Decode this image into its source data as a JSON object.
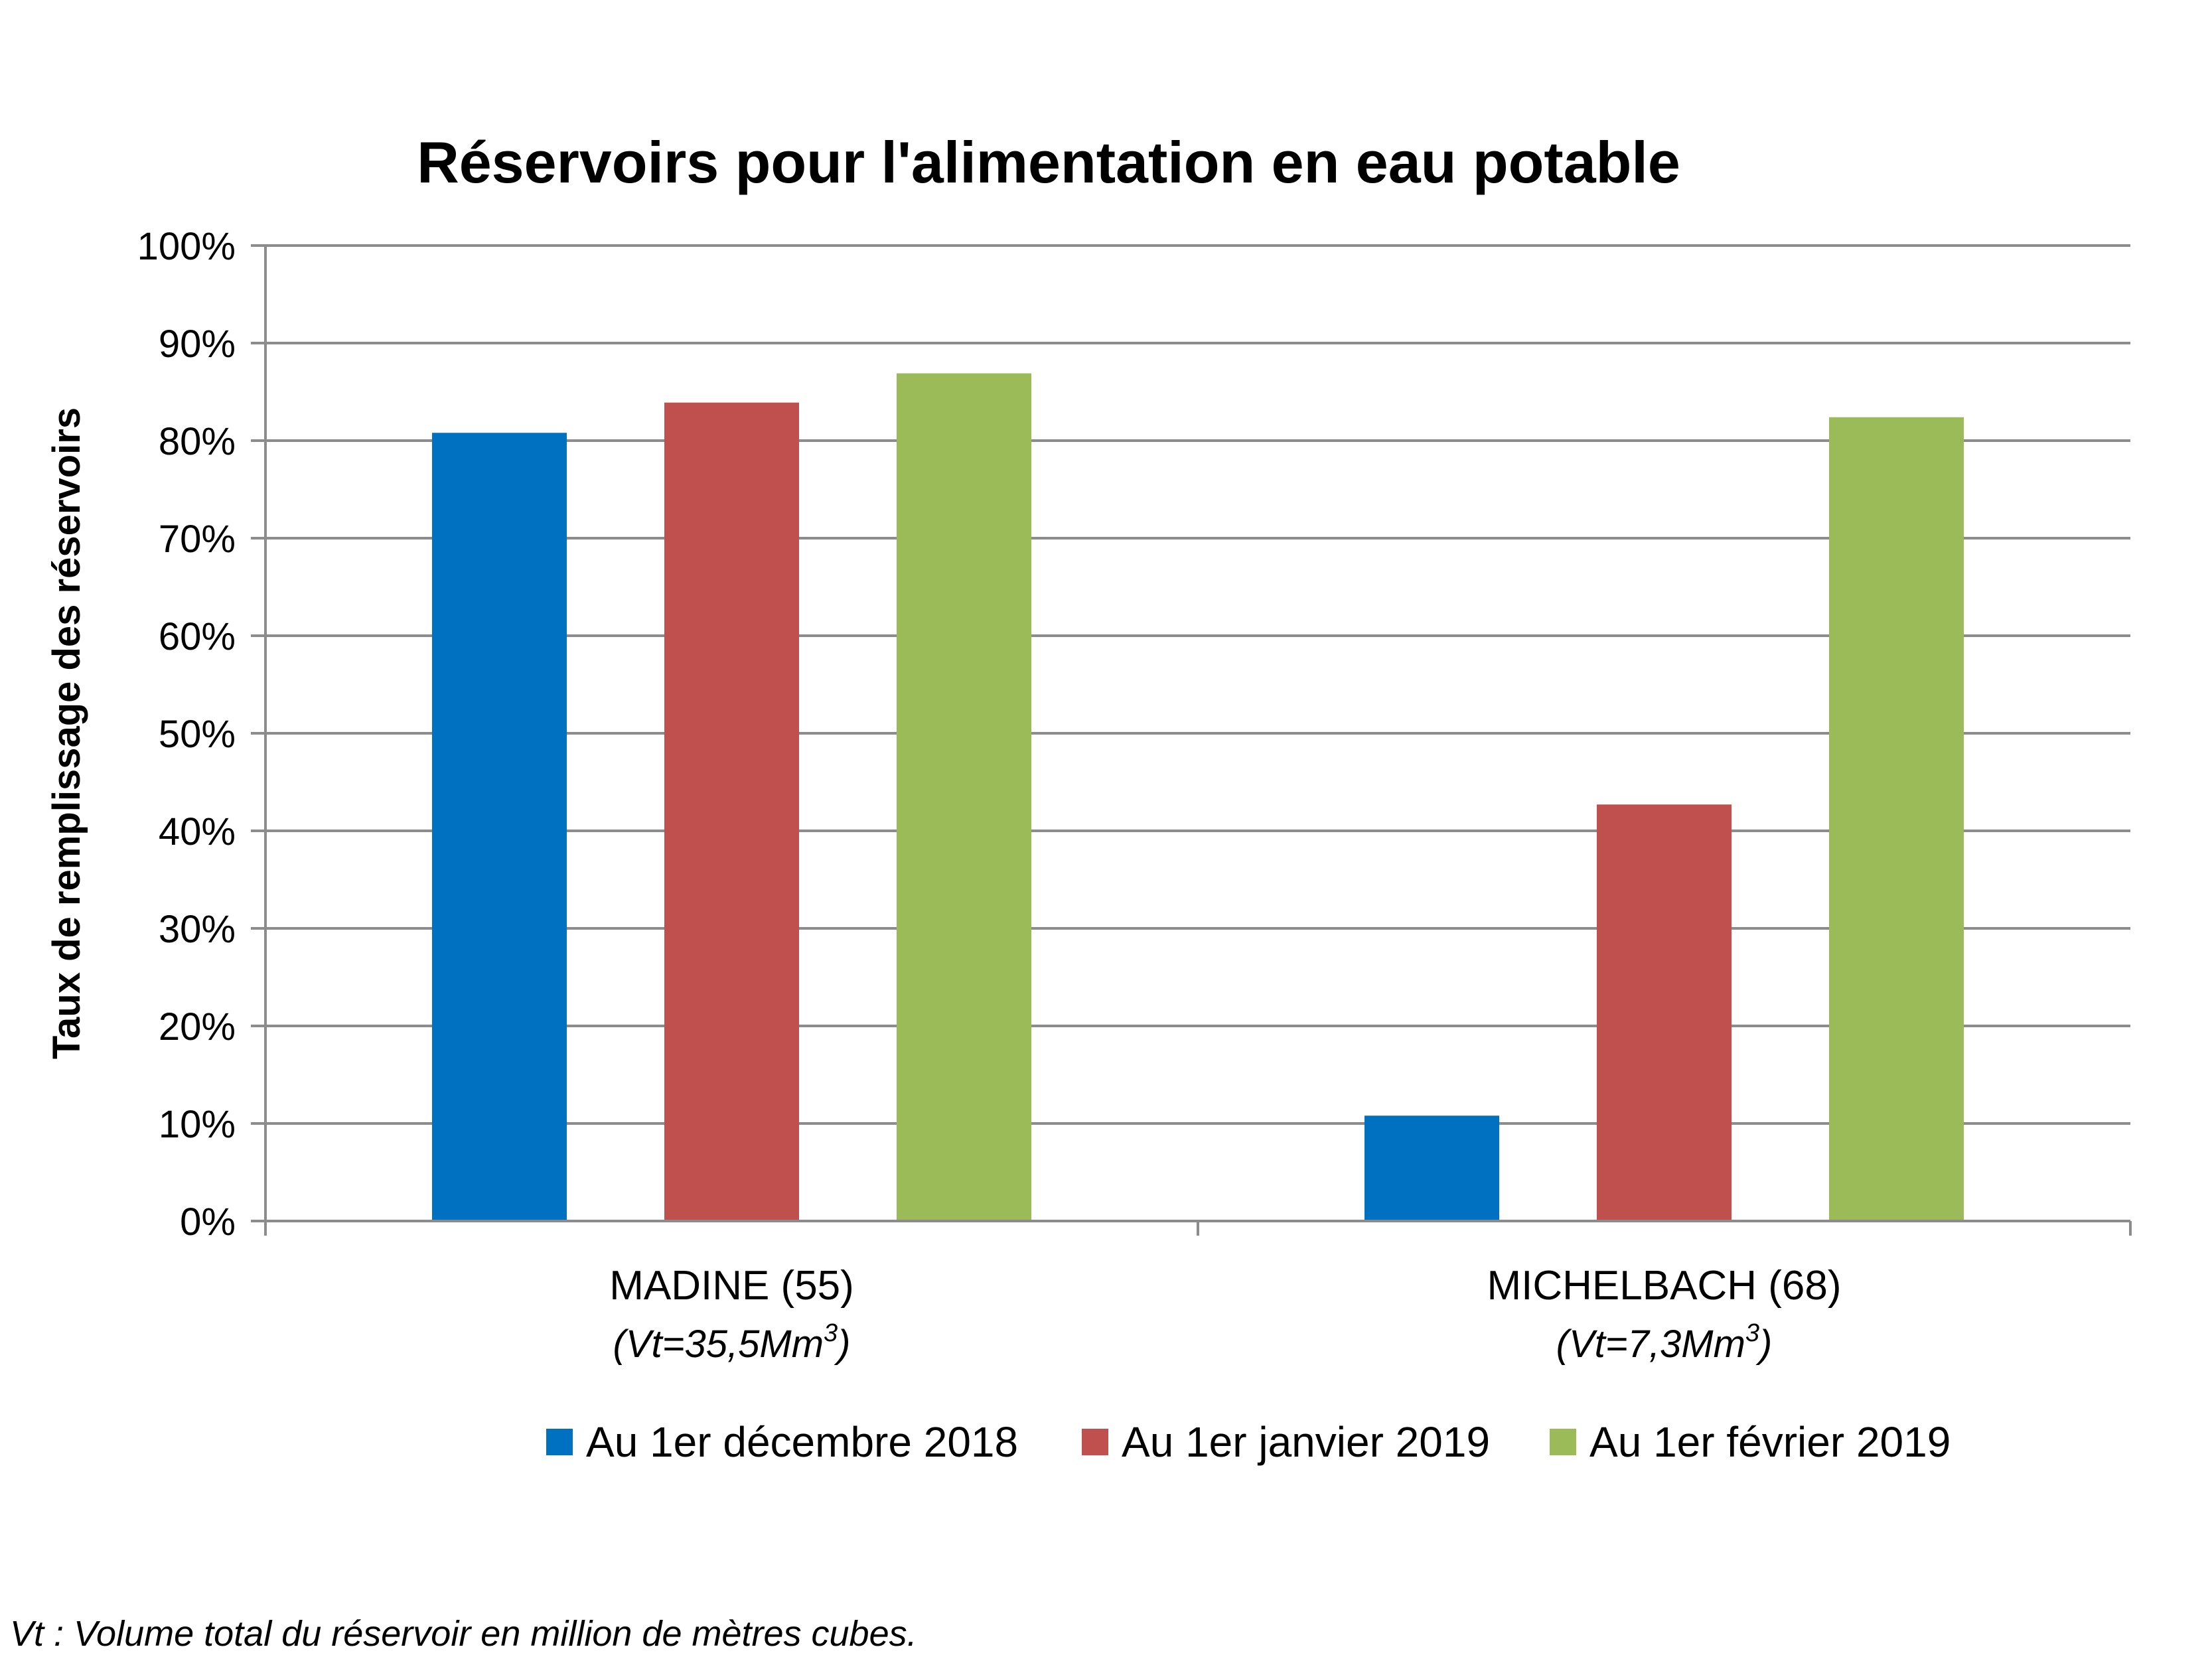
{
  "chart_data": {
    "type": "bar",
    "title": "Réservoirs pour l'alimentation en eau potable",
    "ylabel": "Taux de remplissage des réservoirs",
    "xlabel": "",
    "ylim": [
      0,
      100
    ],
    "yticks": [
      "0%",
      "10%",
      "20%",
      "30%",
      "40%",
      "50%",
      "60%",
      "70%",
      "80%",
      "90%",
      "100%"
    ],
    "grid": true,
    "legend_position": "bottom",
    "categories": [
      {
        "label": "MADINE (55)",
        "sub_prefix": "(Vt=35,5Mm",
        "sub_sup": "3",
        "sub_suffix": ")"
      },
      {
        "label": "MICHELBACH (68)",
        "sub_prefix": "(Vt=7,3Mm",
        "sub_sup": "3",
        "sub_suffix": ")"
      }
    ],
    "series": [
      {
        "name": "Au 1er décembre 2018",
        "color": "#0070c0",
        "values": [
          80.8,
          10.8
        ]
      },
      {
        "name": "Au 1er janvier 2019",
        "color": "#c0504d",
        "values": [
          83.9,
          42.7
        ]
      },
      {
        "name": "Au 1er février 2019",
        "color": "#9bbb59",
        "values": [
          86.9,
          82.4
        ]
      }
    ]
  },
  "footnote": "Vt : Volume total du réservoir en million de mètres cubes."
}
